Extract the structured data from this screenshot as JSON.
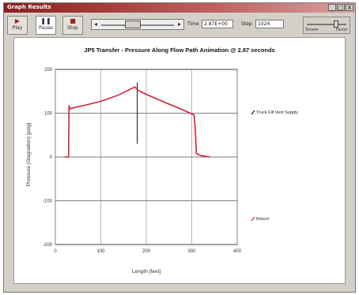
{
  "window": {
    "title": "Graph Results",
    "controls": [
      "_",
      "□",
      "X"
    ]
  },
  "toolbar": {
    "play_label": "Play",
    "pause_label": "Pause",
    "stop_label": "Stop",
    "time_label": "Time",
    "time_value": "2.87E+00",
    "step_label": "Step",
    "step_value": "1024",
    "speed_slow": "Slower",
    "speed_fast": "Faster"
  },
  "colors": {
    "accent": "#d0203a",
    "grid": "#000000"
  },
  "chart_data": {
    "type": "line",
    "title": "JP5 Transfer - Pressure Along Flow Path Animation @ 2.87 seconds",
    "xlabel": "Length [feet]",
    "ylabel": "Pressure (Stagnation) [psig]",
    "xlim": [
      0,
      400
    ],
    "ylim": [
      -200,
      200
    ],
    "xticks": [
      "0",
      "100",
      "200",
      "300",
      "400"
    ],
    "yticks": [
      "200",
      "100",
      "0",
      "-100",
      "-200"
    ],
    "grid": true,
    "legend_position": "right",
    "series": [
      {
        "name": "Truck Fill Vent Supply",
        "color": "#1a1a1a",
        "x": [
          180,
          180
        ],
        "y": [
          170,
          30
        ]
      },
      {
        "name": "Return",
        "color": "#d0203a",
        "x": [
          20,
          29,
          30,
          32,
          42,
          60,
          100,
          140,
          175,
          182,
          200,
          240,
          280,
          305,
          308,
          310,
          320,
          340
        ],
        "y": [
          0,
          0,
          118,
          110,
          113,
          117,
          127,
          142,
          160,
          152,
          143,
          125,
          108,
          96,
          60,
          8,
          3,
          0
        ]
      }
    ]
  }
}
